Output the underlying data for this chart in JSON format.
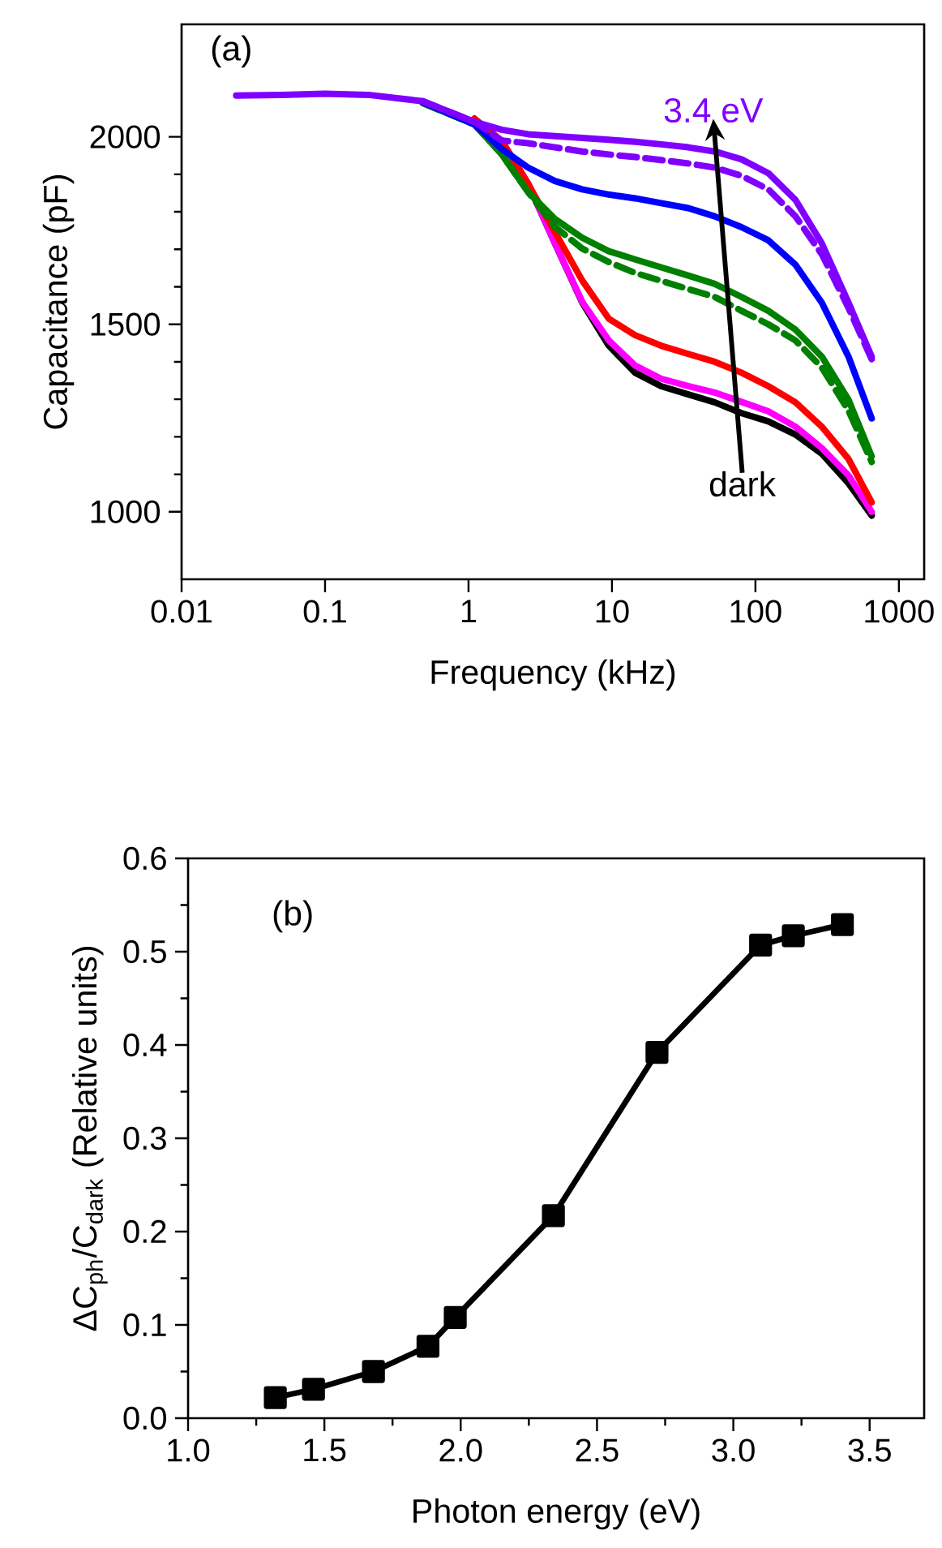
{
  "chart_data": [
    {
      "type": "line",
      "xlabel": "Frequency (kHz)",
      "ylabel": "Capacitance (pF)",
      "log": "x",
      "marker": "none",
      "line_style": "solid",
      "xlim": [
        0.01,
        1500
      ],
      "ylim": [
        820,
        2300
      ],
      "xticks": [
        0.01,
        0.1,
        1,
        10,
        100,
        1000
      ],
      "yticks": [
        1000,
        1500,
        2000
      ],
      "x": [
        0.024,
        0.05,
        0.1,
        0.2,
        0.48,
        1.1,
        1.7,
        2.6,
        4.0,
        6.2,
        9.5,
        14.5,
        22,
        34,
        52,
        80,
        123,
        190,
        290,
        445,
        646
      ],
      "series": [
        {
          "color": "#000000",
          "values": [
            null,
            null,
            null,
            null,
            null,
            null,
            1990,
            1875,
            1716,
            1558,
            1443,
            1371,
            1335,
            1313,
            1292,
            1263,
            1241,
            1206,
            1155,
            1076,
            990
          ]
        },
        {
          "color": "#ff00ff",
          "values": [
            null,
            null,
            null,
            null,
            null,
            null,
            1990,
            1875,
            1716,
            1560,
            1457,
            1390,
            1355,
            1335,
            1318,
            1293,
            1268,
            1227,
            1170,
            1097,
            1000
          ]
        },
        {
          "color": "#ff0000",
          "values": [
            null,
            null,
            null,
            null,
            null,
            2049,
            1990,
            1875,
            1746,
            1617,
            1515,
            1471,
            1443,
            1421,
            1400,
            1371,
            1335,
            1292,
            1227,
            1141,
            1025
          ]
        },
        {
          "color": "#008000",
          "line_style": "dashed",
          "values": [
            null,
            null,
            null,
            null,
            2090,
            2033,
            1954,
            1853,
            1760,
            1702,
            1666,
            1637,
            1616,
            1594,
            1573,
            1536,
            1500,
            1457,
            1385,
            1270,
            1133
          ]
        },
        {
          "color": "#008000",
          "values": [
            null,
            null,
            null,
            null,
            2090,
            2033,
            1954,
            1853,
            1781,
            1731,
            1695,
            1673,
            1652,
            1630,
            1608,
            1573,
            1536,
            1486,
            1414,
            1299,
            1148
          ]
        },
        {
          "color": "#0000ff",
          "values": [
            null,
            null,
            null,
            null,
            2092,
            2033,
            1968,
            1918,
            1882,
            1860,
            1846,
            1836,
            1823,
            1810,
            1788,
            1759,
            1724,
            1659,
            1558,
            1414,
            1249
          ]
        },
        {
          "color": "#8000ff",
          "line_style": "dashed",
          "values": [
            null,
            null,
            null,
            null,
            2095,
            2040,
            1990,
            1983,
            1972,
            1961,
            1953,
            1946,
            1938,
            1929,
            1918,
            1896,
            1860,
            1788,
            1687,
            1544,
            1407
          ]
        },
        {
          "color": "#8000ff",
          "values": [
            2110,
            2112,
            2115,
            2112,
            2095,
            2040,
            2019,
            2007,
            2002,
            1997,
            1992,
            1987,
            1980,
            1972,
            1961,
            1940,
            1903,
            1832,
            1716,
            1558,
            1414
          ]
        }
      ],
      "annotations": [
        "(a)",
        "3.4 eV",
        "dark"
      ]
    },
    {
      "type": "line",
      "xlabel": "Photon energy (eV)",
      "ylabel": "ΔC$_{ph}$/C$_{dark}$ (Relative units)",
      "marker": "square",
      "line_style": "solid",
      "xlim": [
        1.0,
        3.7
      ],
      "ylim": [
        0,
        0.6
      ],
      "xticks": [
        {
          "value": 1,
          "label": "1.0"
        },
        1.5,
        {
          "value": 2,
          "label": "2.0"
        },
        2.5,
        {
          "value": 3,
          "label": "3.0"
        },
        3.5
      ],
      "yticks": [
        {
          "value": 0,
          "label": "0.0"
        },
        0.1,
        0.2,
        0.3,
        0.4,
        0.5,
        0.6
      ],
      "x": [
        1.32,
        1.46,
        1.68,
        1.88,
        1.98,
        2.34,
        2.72,
        3.1,
        3.22,
        3.4
      ],
      "series": [
        {
          "color": "#000000",
          "values": [
            0.022,
            0.031,
            0.05,
            0.077,
            0.108,
            0.217,
            0.392,
            0.507,
            0.517,
            0.529
          ]
        }
      ],
      "annotations": [
        "(b)"
      ]
    }
  ]
}
